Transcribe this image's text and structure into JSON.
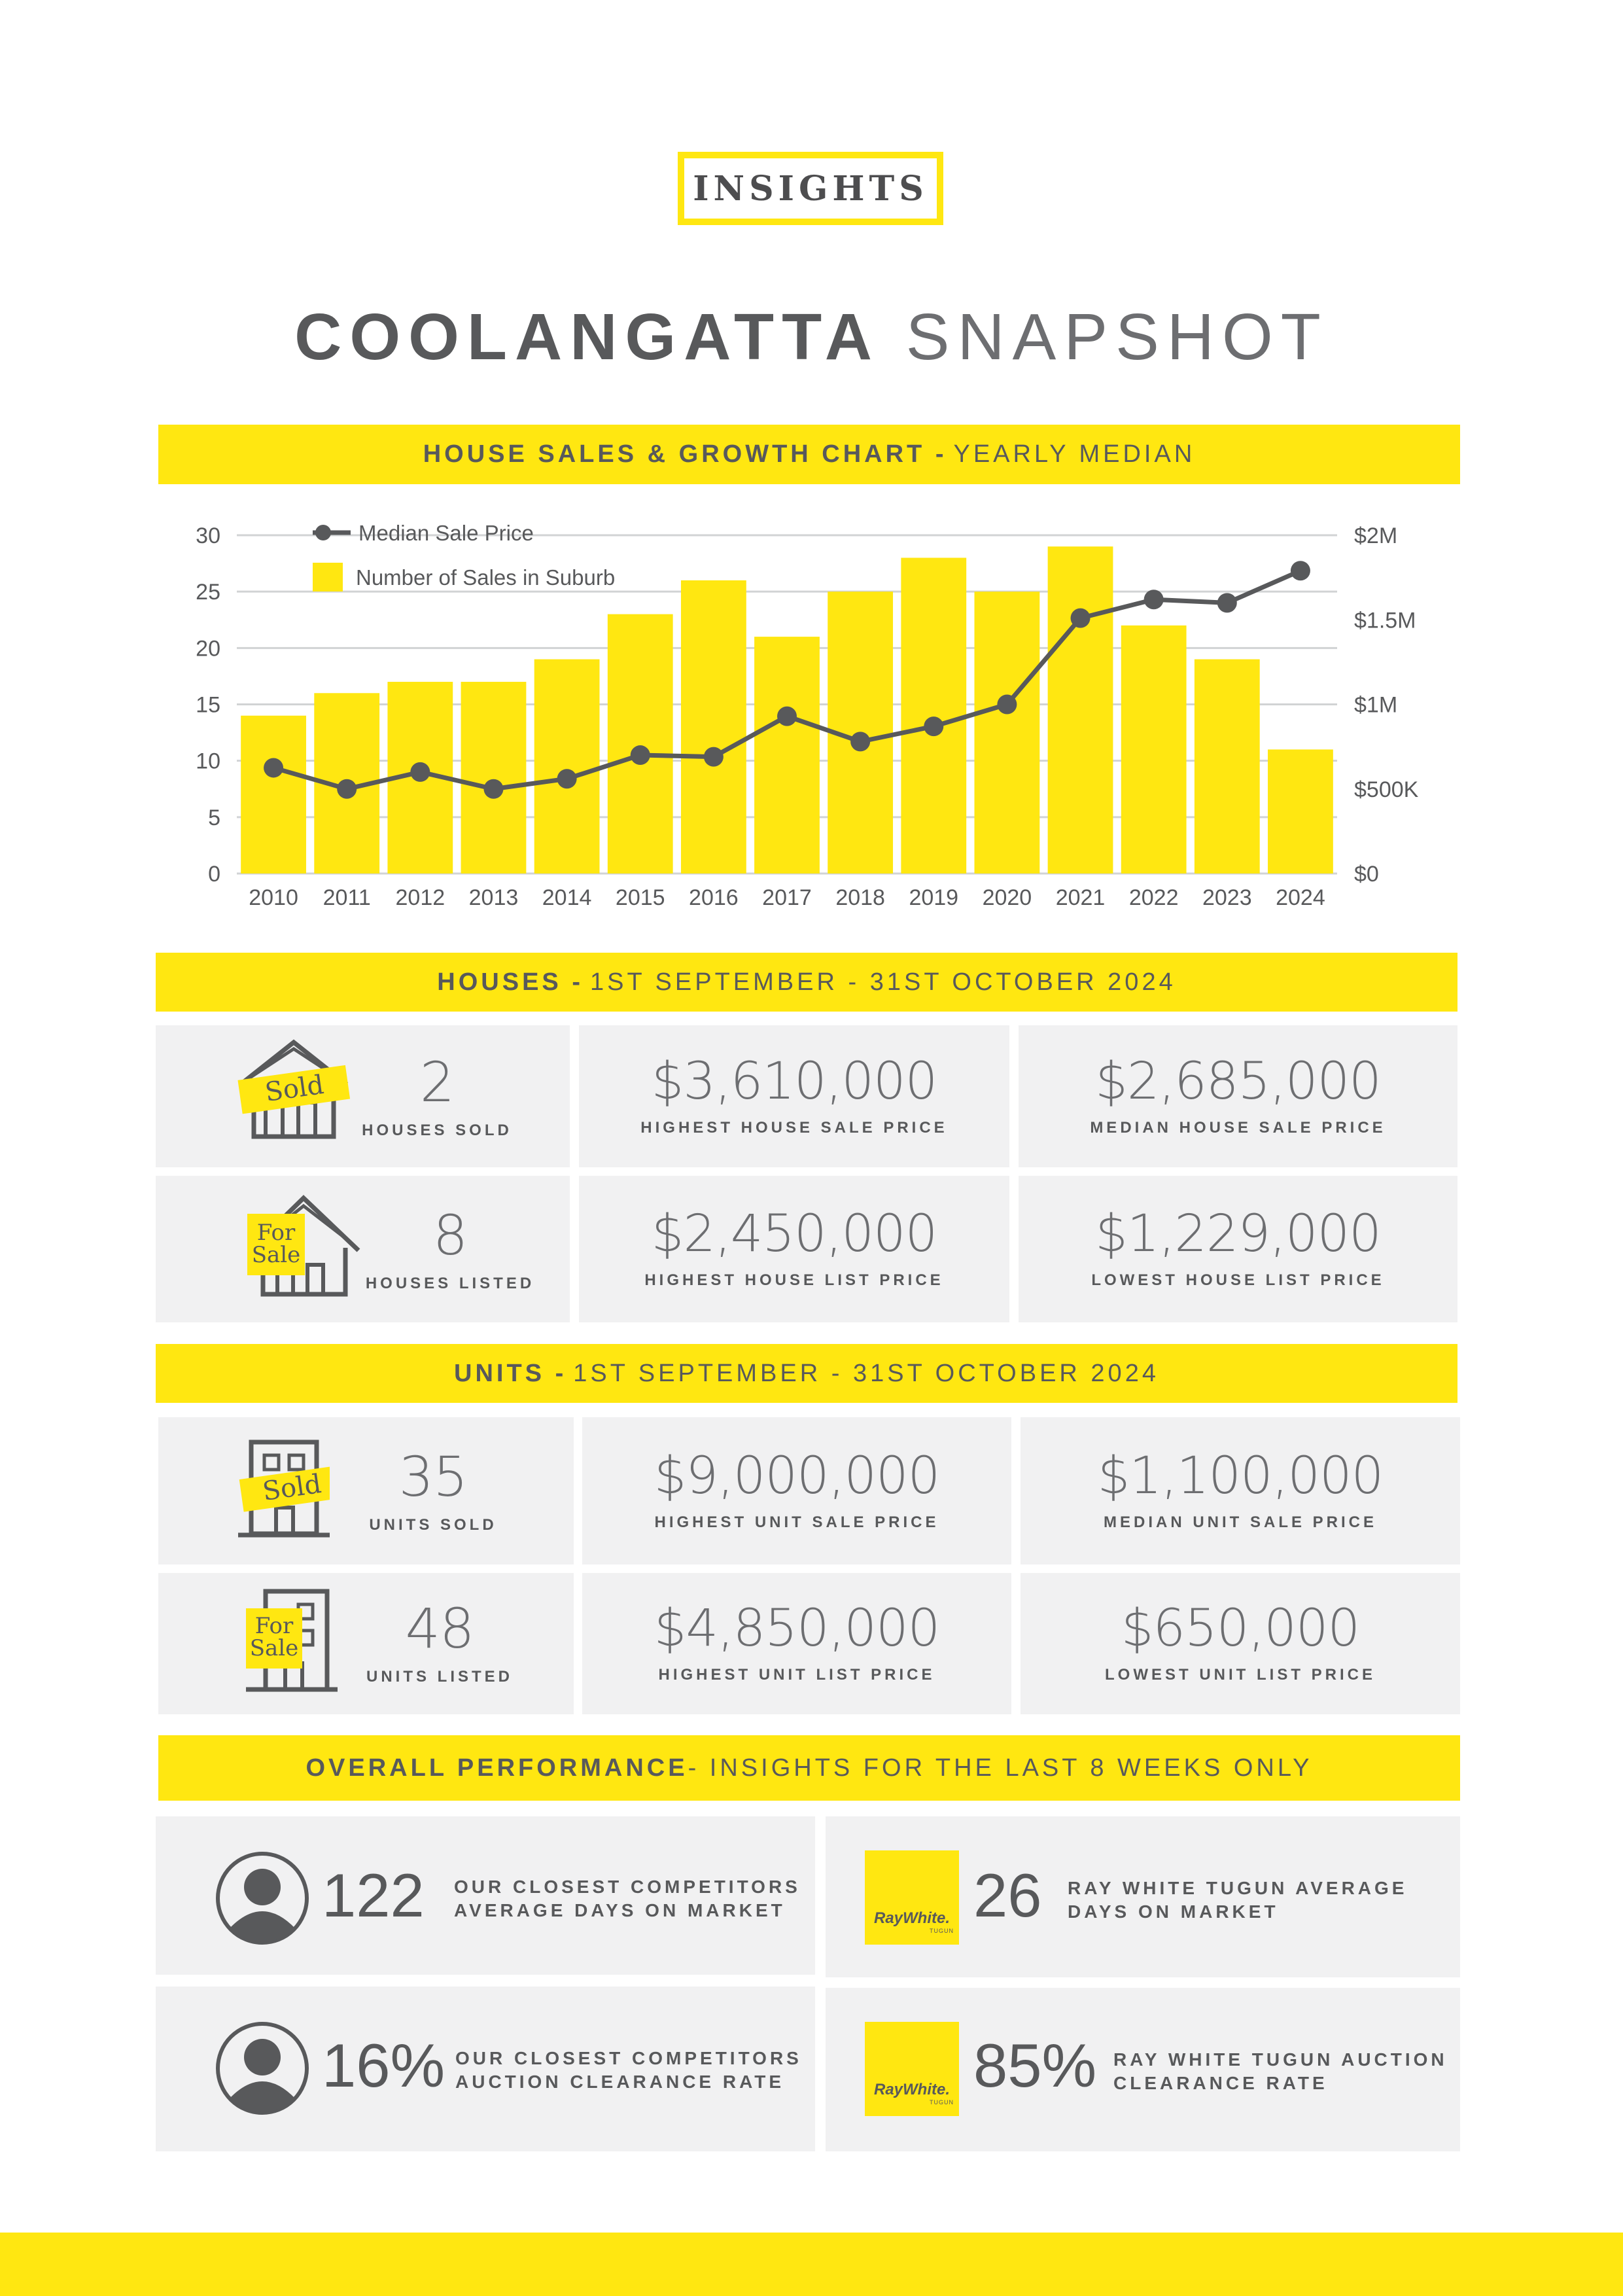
{
  "badge": "INSIGHTS",
  "title": {
    "bold": "COOLANGATTA",
    "light": "SNAPSHOT"
  },
  "chart_section": {
    "bold": "HOUSE SALES & GROWTH CHART -",
    "light": "YEARLY MEDIAN"
  },
  "chart_data": {
    "type": "bar+line",
    "categories": [
      "2010",
      "2011",
      "2012",
      "2013",
      "2014",
      "2015",
      "2016",
      "2017",
      "2018",
      "2019",
      "2020",
      "2021",
      "2022",
      "2023",
      "2024"
    ],
    "series": [
      {
        "name": "Number of Sales in Suburb",
        "type": "bar",
        "axis": "left",
        "values": [
          14,
          16,
          17,
          17,
          19,
          23,
          26,
          21,
          25,
          28,
          25,
          29,
          22,
          19,
          11
        ]
      },
      {
        "name": "Median Sale Price",
        "type": "line",
        "axis": "right",
        "values": [
          625000,
          500000,
          600000,
          500000,
          560000,
          700000,
          690000,
          930000,
          780000,
          870000,
          1000000,
          1510000,
          1620000,
          1600000,
          1790000
        ]
      }
    ],
    "left_axis": {
      "ylim": [
        0,
        30
      ],
      "ticks": [
        "0",
        "5",
        "10",
        "15",
        "20",
        "25",
        "30"
      ]
    },
    "right_axis": {
      "ylim": [
        0,
        2000000
      ],
      "ticks": [
        "$0",
        "$500K",
        "$1M",
        "$1.5M",
        "$2M"
      ]
    },
    "legend": [
      "Median Sale Price",
      "Number of Sales in Suburb"
    ],
    "legend_position": "top-left",
    "bar_color": "#ffe711",
    "line_color": "#58595b",
    "grid": true
  },
  "houses": {
    "header": {
      "bold": "HOUSES -",
      "light": "1ST SEPTEMBER - 31ST OCTOBER 2024"
    },
    "sold": {
      "value": "2",
      "label": "HOUSES SOLD",
      "tag": "Sold"
    },
    "listed": {
      "value": "8",
      "label": "HOUSES LISTED",
      "tag_line1": "For",
      "tag_line2": "Sale"
    },
    "highest_sale": {
      "value": "$3,610,000",
      "label": "HIGHEST HOUSE SALE PRICE"
    },
    "median_sale": {
      "value": "$2,685,000",
      "label": "MEDIAN HOUSE SALE PRICE"
    },
    "highest_list": {
      "value": "$2,450,000",
      "label": "HIGHEST HOUSE LIST PRICE"
    },
    "lowest_list": {
      "value": "$1,229,000",
      "label": "LOWEST HOUSE LIST PRICE"
    }
  },
  "units": {
    "header": {
      "bold": "UNITS -",
      "light": "1ST SEPTEMBER - 31ST OCTOBER 2024"
    },
    "sold": {
      "value": "35",
      "label": "UNITS SOLD",
      "tag": "Sold"
    },
    "listed": {
      "value": "48",
      "label": "UNITS LISTED",
      "tag_line1": "For",
      "tag_line2": "Sale"
    },
    "highest_sale": {
      "value": "$9,000,000",
      "label": "HIGHEST UNIT SALE PRICE"
    },
    "median_sale": {
      "value": "$1,100,000",
      "label": "MEDIAN UNIT SALE PRICE"
    },
    "highest_list": {
      "value": "$4,850,000",
      "label": "HIGHEST UNIT LIST PRICE"
    },
    "lowest_list": {
      "value": "$650,000",
      "label": "LOWEST UNIT LIST PRICE"
    }
  },
  "overall": {
    "header": {
      "bold": "OVERALL PERFORMANCE",
      "light": "- INSIGHTS FOR THE LAST 8 WEEKS ONLY"
    },
    "competitor_days": {
      "value": "122",
      "line1": "OUR CLOSEST COMPETITORS",
      "line2": "AVERAGE DAYS ON MARKET"
    },
    "raywhite_days": {
      "value": "26",
      "line1": "RAY WHITE TUGUN AVERAGE",
      "line2": "DAYS ON MARKET"
    },
    "competitor_clearance": {
      "value": "16%",
      "line1": "OUR CLOSEST COMPETITORS",
      "line2": "AUCTION CLEARANCE RATE"
    },
    "raywhite_clearance": {
      "value": "85%",
      "line1": "RAY WHITE TUGUN AUCTION",
      "line2": "CLEARANCE RATE"
    },
    "logo": {
      "brand": "RayWhite.",
      "sub": "TUGUN"
    }
  }
}
